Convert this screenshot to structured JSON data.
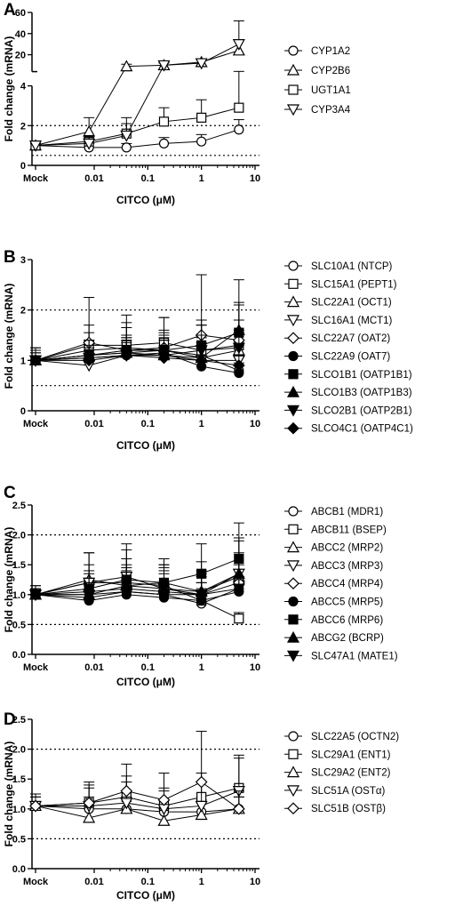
{
  "chart_data": [
    {
      "type": "line",
      "panel": "A",
      "xlabel": "CITCO (μM)",
      "ylabel": "Fold change (mRNA)",
      "x_categories": [
        "Mock",
        "0.01",
        "0.1",
        "1",
        "10"
      ],
      "x_scale": "log",
      "x_points": [
        "Mock",
        0.008,
        0.04,
        0.2,
        1,
        5
      ],
      "y_axis_break": {
        "lower": [
          0,
          4
        ],
        "upper": [
          4,
          60
        ]
      },
      "y_ticks": [
        "0",
        "2",
        "4",
        "20",
        "40",
        "60"
      ],
      "reference_lines": [
        0.5,
        2
      ],
      "series": [
        {
          "name": "CYP1A2",
          "marker": "circle-open",
          "values": [
            1,
            0.9,
            0.9,
            1.1,
            1.2,
            1.8
          ],
          "err": [
            0.1,
            0.2,
            0.2,
            0.3,
            0.35,
            0.5
          ]
        },
        {
          "name": "CYP2B6",
          "marker": "triangle-up-open",
          "values": [
            1,
            1.7,
            9,
            10,
            13,
            24
          ],
          "err": [
            0.1,
            0.7,
            2,
            2,
            3,
            10
          ]
        },
        {
          "name": "UGT1A1",
          "marker": "square-open",
          "values": [
            1,
            1.2,
            1.6,
            2.2,
            2.4,
            2.9
          ],
          "err": [
            0.1,
            0.3,
            0.8,
            0.7,
            0.9,
            1.3
          ]
        },
        {
          "name": "CYP3A4",
          "marker": "triangle-down-open",
          "values": [
            1,
            1.1,
            1.5,
            10,
            12,
            30
          ],
          "err": [
            0.1,
            0.3,
            0.6,
            3,
            4,
            22
          ]
        }
      ]
    },
    {
      "type": "line",
      "panel": "B",
      "xlabel": "CITCO (μM)",
      "ylabel": "Fold change (mRNA)",
      "x_categories": [
        "Mock",
        "0.01",
        "0.1",
        "1",
        "10"
      ],
      "x_scale": "log",
      "x_points": [
        "Mock",
        0.008,
        0.04,
        0.2,
        1,
        5
      ],
      "ylim": [
        0,
        3
      ],
      "y_ticks": [
        "0",
        "1",
        "2",
        "3"
      ],
      "reference_lines": [
        0.5,
        2
      ],
      "series": [
        {
          "name": "SLC10A1 (NTCP)",
          "marker": "circle-open",
          "values": [
            1,
            1.2,
            1.25,
            1.2,
            1.1,
            0.8
          ],
          "err": [
            0.25,
            0.35,
            0.4,
            0.4,
            0.6,
            0.3
          ]
        },
        {
          "name": "SLC15A1 (PEPT1)",
          "marker": "square-open",
          "values": [
            1,
            1.3,
            1.3,
            1.35,
            1.2,
            1.3
          ],
          "err": [
            0.2,
            0.4,
            0.45,
            0.5,
            0.6,
            0.5
          ]
        },
        {
          "name": "SLC22A1 (OCT1)",
          "marker": "triangle-up-open",
          "values": [
            1,
            1.1,
            1.15,
            1.2,
            1.05,
            1.2
          ],
          "err": [
            0.2,
            0.3,
            0.3,
            0.3,
            0.4,
            0.4
          ]
        },
        {
          "name": "SLC16A1 (MCT1)",
          "marker": "triangle-down-open",
          "values": [
            1,
            0.9,
            1.1,
            1.1,
            1.0,
            1.0
          ],
          "err": [
            0.2,
            0.3,
            0.3,
            0.3,
            0.3,
            0.3
          ]
        },
        {
          "name": "SLC22A7 (OAT2)",
          "marker": "diamond-open",
          "values": [
            1,
            1.35,
            1.2,
            1.25,
            1.5,
            1.4
          ],
          "err": [
            0.25,
            0.9,
            0.7,
            0.6,
            1.2,
            1.2
          ]
        },
        {
          "name": "SLC22A9 (OAT7)",
          "marker": "circle-filled",
          "values": [
            1,
            1.05,
            1.1,
            1.15,
            0.88,
            0.75
          ],
          "err": [
            0.15,
            0.2,
            0.2,
            0.3,
            0.2,
            0.2
          ]
        },
        {
          "name": "SLCO1B1 (OATP1B1)",
          "marker": "square-filled",
          "values": [
            1,
            1.1,
            1.2,
            1.2,
            1.3,
            1.55
          ],
          "err": [
            0.2,
            0.3,
            0.3,
            0.35,
            0.4,
            0.6
          ]
        },
        {
          "name": "SLCO1B3 (OATP1B3)",
          "marker": "triangle-up-filled",
          "values": [
            1,
            1.1,
            1.15,
            1.1,
            1.05,
            1.6
          ],
          "err": [
            0.2,
            0.3,
            0.3,
            0.3,
            0.3,
            0.5
          ]
        },
        {
          "name": "SLCO2B1 (OATP2B1)",
          "marker": "triangle-down-filled",
          "values": [
            1,
            1.05,
            1.1,
            1.1,
            1.2,
            1.25
          ],
          "err": [
            0.2,
            0.25,
            0.3,
            0.3,
            0.3,
            0.3
          ]
        },
        {
          "name": "SLCO4C1 (OATP4C1)",
          "marker": "diamond-filled",
          "values": [
            1,
            1.0,
            1.1,
            1.05,
            1.0,
            0.9
          ],
          "err": [
            0.15,
            0.2,
            0.25,
            0.25,
            0.25,
            0.2
          ]
        }
      ]
    },
    {
      "type": "line",
      "panel": "C",
      "xlabel": "CITCO (μM)",
      "ylabel": "Fold change (mRNA)",
      "x_categories": [
        "Mock",
        "0.01",
        "0.1",
        "1",
        "10"
      ],
      "x_scale": "log",
      "x_points": [
        "Mock",
        0.008,
        0.04,
        0.2,
        1,
        5
      ],
      "ylim": [
        0,
        2.5
      ],
      "y_ticks": [
        "0.0",
        "0.5",
        "1.0",
        "1.5",
        "2.0",
        "2.5"
      ],
      "reference_lines": [
        0.5,
        2
      ],
      "series": [
        {
          "name": "ABCB1 (MDR1)",
          "marker": "circle-open",
          "values": [
            1,
            0.95,
            1.05,
            1.0,
            0.85,
            1.1
          ],
          "err": [
            0.1,
            0.2,
            0.2,
            0.2,
            0.2,
            0.2
          ]
        },
        {
          "name": "ABCB11 (BSEP)",
          "marker": "square-open",
          "values": [
            1,
            1.2,
            1.2,
            1.15,
            0.9,
            0.6
          ],
          "err": [
            0.1,
            0.3,
            0.3,
            0.3,
            0.3,
            0.1
          ]
        },
        {
          "name": "ABCC2 (MRP2)",
          "marker": "triangle-up-open",
          "values": [
            1,
            1.25,
            1.15,
            1.2,
            1.05,
            1.3
          ],
          "err": [
            0.15,
            0.45,
            0.6,
            0.4,
            0.5,
            0.6
          ]
        },
        {
          "name": "ABCC3 (MRP3)",
          "marker": "triangle-down-open",
          "values": [
            1,
            1.2,
            1.3,
            1.1,
            1.0,
            1.35
          ],
          "err": [
            0.15,
            0.5,
            0.55,
            0.4,
            0.4,
            0.6
          ]
        },
        {
          "name": "ABCC4 (MRP4)",
          "marker": "diamond-open",
          "values": [
            1,
            1.05,
            1.1,
            1.05,
            1.0,
            1.2
          ],
          "err": [
            0.1,
            0.3,
            0.3,
            0.3,
            0.3,
            0.3
          ]
        },
        {
          "name": "ABCC5 (MRP5)",
          "marker": "circle-filled",
          "values": [
            1,
            0.9,
            1.0,
            0.95,
            0.9,
            1.05
          ],
          "err": [
            0.1,
            0.15,
            0.2,
            0.2,
            0.2,
            0.2
          ]
        },
        {
          "name": "ABCC6 (MRP6)",
          "marker": "square-filled",
          "values": [
            1,
            1.1,
            1.25,
            1.2,
            1.35,
            1.6
          ],
          "err": [
            0.1,
            0.3,
            0.35,
            0.3,
            0.5,
            0.6
          ]
        },
        {
          "name": "ABCG2 (BCRP)",
          "marker": "triangle-up-filled",
          "values": [
            1,
            1.0,
            1.15,
            1.1,
            1.05,
            1.35
          ],
          "err": [
            0.1,
            0.2,
            0.3,
            0.3,
            0.3,
            0.35
          ]
        },
        {
          "name": "SLC47A1 (MATE1)",
          "marker": "triangle-down-filled",
          "values": [
            1,
            1.0,
            1.05,
            1.0,
            1.0,
            1.1
          ],
          "err": [
            0.1,
            0.2,
            0.2,
            0.2,
            0.2,
            0.2
          ]
        }
      ]
    },
    {
      "type": "line",
      "panel": "D",
      "xlabel": "CITCO (μM)",
      "ylabel": "Fold change (mRNA)",
      "x_categories": [
        "Mock",
        "0.01",
        "0.1",
        "1",
        "10"
      ],
      "x_scale": "log",
      "x_points": [
        "Mock",
        0.008,
        0.04,
        0.2,
        1,
        5
      ],
      "ylim": [
        0,
        2.5
      ],
      "y_ticks": [
        "0.0",
        "0.5",
        "1.0",
        "1.5",
        "2.0",
        "2.5"
      ],
      "reference_lines": [
        0.5,
        2
      ],
      "series": [
        {
          "name": "SLC22A5 (OCTN2)",
          "marker": "circle-open",
          "values": [
            1.05,
            1.0,
            1.0,
            0.95,
            0.95,
            1.0
          ],
          "err": [
            0.15,
            0.2,
            0.2,
            0.2,
            0.2,
            0.2
          ]
        },
        {
          "name": "SLC29A1 (ENT1)",
          "marker": "square-open",
          "values": [
            1.05,
            1.1,
            1.2,
            1.05,
            1.2,
            1.35
          ],
          "err": [
            0.2,
            0.3,
            0.35,
            0.3,
            0.4,
            0.5
          ]
        },
        {
          "name": "SLC29A2 (ENT2)",
          "marker": "triangle-up-open",
          "values": [
            1.05,
            0.85,
            1.0,
            0.8,
            0.9,
            1.0
          ],
          "err": [
            0.15,
            0.2,
            0.2,
            0.2,
            0.2,
            0.2
          ]
        },
        {
          "name": "SLC51A (OSTα)",
          "marker": "triangle-down-open",
          "values": [
            1.05,
            1.05,
            1.1,
            1.0,
            1.05,
            1.3
          ],
          "err": [
            0.2,
            0.3,
            0.35,
            0.3,
            0.4,
            0.6
          ]
        },
        {
          "name": "SLC51B (OSTβ)",
          "marker": "diamond-open",
          "values": [
            1.05,
            1.1,
            1.3,
            1.15,
            1.45,
            1.0
          ],
          "err": [
            0.2,
            0.35,
            0.45,
            0.45,
            0.85,
            0.3
          ]
        }
      ]
    }
  ]
}
